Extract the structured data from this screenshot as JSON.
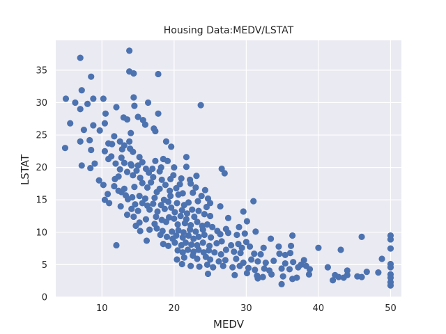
{
  "chart_data": {
    "type": "scatter",
    "title": "Housing Data:MEDV/LSTAT",
    "xlabel": "MEDV",
    "ylabel": "LSTAT",
    "xlim": [
      3.6,
      51.5
    ],
    "ylim": [
      0,
      39.6
    ],
    "xticks": [
      10,
      20,
      30,
      40,
      50
    ],
    "yticks": [
      0,
      5,
      10,
      15,
      20,
      25,
      30,
      35
    ],
    "grid": true,
    "colors": {
      "background": "#EAEAF2",
      "grid": "#FFFFFF",
      "marker": "#4C72B0"
    },
    "series": [
      {
        "points": [
          [
            7.0,
            36.9
          ],
          [
            13.8,
            38.0
          ],
          [
            13.8,
            34.8
          ],
          [
            14.4,
            34.5
          ],
          [
            17.8,
            34.4
          ],
          [
            8.5,
            34.0
          ],
          [
            23.7,
            29.6
          ],
          [
            7.2,
            31.9
          ],
          [
            5.0,
            30.6
          ],
          [
            10.2,
            30.6
          ],
          [
            12.0,
            29.3
          ],
          [
            14.4,
            30.8
          ],
          [
            16.4,
            30.0
          ],
          [
            6.3,
            30.0
          ],
          [
            8.0,
            29.8
          ],
          [
            7.0,
            29.0
          ],
          [
            8.8,
            30.6
          ],
          [
            10.5,
            28.3
          ],
          [
            14.5,
            29.5
          ],
          [
            17.8,
            28.3
          ],
          [
            15.0,
            27.8
          ],
          [
            13.5,
            27.4
          ],
          [
            13.0,
            27.7
          ],
          [
            16.0,
            26.6
          ],
          [
            15.7,
            27.3
          ],
          [
            17.2,
            26.0
          ],
          [
            10.4,
            26.8
          ],
          [
            5.6,
            26.8
          ],
          [
            8.8,
            26.5
          ],
          [
            7.5,
            25.8
          ],
          [
            9.7,
            25.7
          ],
          [
            11.7,
            24.8
          ],
          [
            13.8,
            24.0
          ],
          [
            17.4,
            25.6
          ],
          [
            14.0,
            25.3
          ],
          [
            12.5,
            24.0
          ],
          [
            8.3,
            24.2
          ],
          [
            7.0,
            24.0
          ],
          [
            4.9,
            23.0
          ],
          [
            10.9,
            23.7
          ],
          [
            11.4,
            23.6
          ],
          [
            13.1,
            23.4
          ],
          [
            12.8,
            22.8
          ],
          [
            13.9,
            22.9
          ],
          [
            14.3,
            22.4
          ],
          [
            18.9,
            24.0
          ],
          [
            19.6,
            23.2
          ],
          [
            10.4,
            22.5
          ],
          [
            8.5,
            22.7
          ],
          [
            11.3,
            21.7
          ],
          [
            10.9,
            21.3
          ],
          [
            12.7,
            21.5
          ],
          [
            13.1,
            20.7
          ],
          [
            14.1,
            20.3
          ],
          [
            15.2,
            21.6
          ],
          [
            15.6,
            20.8
          ],
          [
            16.1,
            19.8
          ],
          [
            17.4,
            21.0
          ],
          [
            18.5,
            21.3
          ],
          [
            19.1,
            21.0
          ],
          [
            21.7,
            21.6
          ],
          [
            21.7,
            20.1
          ],
          [
            20.0,
            20.0
          ],
          [
            18.2,
            20.0
          ],
          [
            17.0,
            19.8
          ],
          [
            15.0,
            20.3
          ],
          [
            14.0,
            20.5
          ],
          [
            12.5,
            19.7
          ],
          [
            11.9,
            20.6
          ],
          [
            9.0,
            20.6
          ],
          [
            8.4,
            19.9
          ],
          [
            7.2,
            20.3
          ],
          [
            26.6,
            19.8
          ],
          [
            27.0,
            19.1
          ],
          [
            13.5,
            19.3
          ],
          [
            14.8,
            19.5
          ],
          [
            16.5,
            19.2
          ],
          [
            18.0,
            19.4
          ],
          [
            19.9,
            18.8
          ],
          [
            23.1,
            18.7
          ],
          [
            22.2,
            18.1
          ],
          [
            21.0,
            18.3
          ],
          [
            19.5,
            18.2
          ],
          [
            18.3,
            18.1
          ],
          [
            17.1,
            18.5
          ],
          [
            15.3,
            18.4
          ],
          [
            14.3,
            18.8
          ],
          [
            12.3,
            18.6
          ],
          [
            11.8,
            18.2
          ],
          [
            9.6,
            18.0
          ],
          [
            15.6,
            17.6
          ],
          [
            16.8,
            17.7
          ],
          [
            18.8,
            17.3
          ],
          [
            20.8,
            17.4
          ],
          [
            22.3,
            17.5
          ],
          [
            23.0,
            16.9
          ],
          [
            24.3,
            16.5
          ],
          [
            20.3,
            16.8
          ],
          [
            19.4,
            16.4
          ],
          [
            18.0,
            16.7
          ],
          [
            17.6,
            16.2
          ],
          [
            16.3,
            16.9
          ],
          [
            14.5,
            17.0
          ],
          [
            13.1,
            16.7
          ],
          [
            12.7,
            16.2
          ],
          [
            11.7,
            17.1
          ],
          [
            10.2,
            17.3
          ],
          [
            10.8,
            15.9
          ],
          [
            10.4,
            15.0
          ],
          [
            12.3,
            16.4
          ],
          [
            13.3,
            15.7
          ],
          [
            14.2,
            15.4
          ],
          [
            15.2,
            15.6
          ],
          [
            16.0,
            15.2
          ],
          [
            17.3,
            15.3
          ],
          [
            18.6,
            15.0
          ],
          [
            19.5,
            15.6
          ],
          [
            20.6,
            15.8
          ],
          [
            21.2,
            16.0
          ],
          [
            22.6,
            16.1
          ],
          [
            23.8,
            15.6
          ],
          [
            24.7,
            15.2
          ],
          [
            26.4,
            14.0
          ],
          [
            31.0,
            14.8
          ],
          [
            25.0,
            14.5
          ],
          [
            23.3,
            14.8
          ],
          [
            22.0,
            14.6
          ],
          [
            21.4,
            14.2
          ],
          [
            20.4,
            14.5
          ],
          [
            19.2,
            14.7
          ],
          [
            18.2,
            14.2
          ],
          [
            17.1,
            14.4
          ],
          [
            16.3,
            14.1
          ],
          [
            15.6,
            14.5
          ],
          [
            14.6,
            14.3
          ],
          [
            13.6,
            15.1
          ],
          [
            11.0,
            14.5
          ],
          [
            12.6,
            14.0
          ],
          [
            14.1,
            13.6
          ],
          [
            15.0,
            13.3
          ],
          [
            16.6,
            13.5
          ],
          [
            17.7,
            13.2
          ],
          [
            18.7,
            13.6
          ],
          [
            19.6,
            13.8
          ],
          [
            20.1,
            13.1
          ],
          [
            21.1,
            13.4
          ],
          [
            21.8,
            12.9
          ],
          [
            22.5,
            13.5
          ],
          [
            23.4,
            13.3
          ],
          [
            24.2,
            12.8
          ],
          [
            24.5,
            13.9
          ],
          [
            25.0,
            12.5
          ],
          [
            27.5,
            12.2
          ],
          [
            29.6,
            13.2
          ],
          [
            22.8,
            12.4
          ],
          [
            21.7,
            12.0
          ],
          [
            20.9,
            12.5
          ],
          [
            20.0,
            12.1
          ],
          [
            19.3,
            12.3
          ],
          [
            18.3,
            11.9
          ],
          [
            17.5,
            12.4
          ],
          [
            16.1,
            12.0
          ],
          [
            14.4,
            12.4
          ],
          [
            13.5,
            12.7
          ],
          [
            15.2,
            11.5
          ],
          [
            17.3,
            11.3
          ],
          [
            18.9,
            11.6
          ],
          [
            20.5,
            11.2
          ],
          [
            21.5,
            11.4
          ],
          [
            22.3,
            11.1
          ],
          [
            23.2,
            11.6
          ],
          [
            23.9,
            11.0
          ],
          [
            24.6,
            11.2
          ],
          [
            25.3,
            10.8
          ],
          [
            26.0,
            10.2
          ],
          [
            27.2,
            10.5
          ],
          [
            29.0,
            10.8
          ],
          [
            30.1,
            11.7
          ],
          [
            24.0,
            10.4
          ],
          [
            23.0,
            10.1
          ],
          [
            22.2,
            10.4
          ],
          [
            21.3,
            10.0
          ],
          [
            20.6,
            10.3
          ],
          [
            19.7,
            10.1
          ],
          [
            18.4,
            10.2
          ],
          [
            17.6,
            10.6
          ],
          [
            16.6,
            10.4
          ],
          [
            15.3,
            10.2
          ],
          [
            14.7,
            11.0
          ],
          [
            16.2,
            8.7
          ],
          [
            18.1,
            9.6
          ],
          [
            19.0,
            9.3
          ],
          [
            19.8,
            9.0
          ],
          [
            20.3,
            9.5
          ],
          [
            21.2,
            9.2
          ],
          [
            22.0,
            9.5
          ],
          [
            22.7,
            9.0
          ],
          [
            23.4,
            9.3
          ],
          [
            24.2,
            9.6
          ],
          [
            25.1,
            9.2
          ],
          [
            26.4,
            9.7
          ],
          [
            27.5,
            9.9
          ],
          [
            28.7,
            9.6
          ],
          [
            29.8,
            9.8
          ],
          [
            31.3,
            10.1
          ],
          [
            33.4,
            9.0
          ],
          [
            36.4,
            9.5
          ],
          [
            46.0,
            9.3
          ],
          [
            50.0,
            9.5
          ],
          [
            50.0,
            8.9
          ],
          [
            12.0,
            8.0
          ],
          [
            18.5,
            8.2
          ],
          [
            19.2,
            7.9
          ],
          [
            20.1,
            8.4
          ],
          [
            21.0,
            8.0
          ],
          [
            21.6,
            8.4
          ],
          [
            22.4,
            8.1
          ],
          [
            23.2,
            8.0
          ],
          [
            24.0,
            8.4
          ],
          [
            24.9,
            7.9
          ],
          [
            25.9,
            8.3
          ],
          [
            26.6,
            8.6
          ],
          [
            27.9,
            8.0
          ],
          [
            28.9,
            8.2
          ],
          [
            30.0,
            8.5
          ],
          [
            29.4,
            7.6
          ],
          [
            30.5,
            7.8
          ],
          [
            32.4,
            7.6
          ],
          [
            34.5,
            7.8
          ],
          [
            36.2,
            7.9
          ],
          [
            40.0,
            7.6
          ],
          [
            43.1,
            7.3
          ],
          [
            50.0,
            7.5
          ],
          [
            20.5,
            7.2
          ],
          [
            21.2,
            6.9
          ],
          [
            21.9,
            7.3
          ],
          [
            22.7,
            7.0
          ],
          [
            23.4,
            7.3
          ],
          [
            24.1,
            6.9
          ],
          [
            24.8,
            7.2
          ],
          [
            25.6,
            6.9
          ],
          [
            26.5,
            6.6
          ],
          [
            27.2,
            7.3
          ],
          [
            28.3,
            7.0
          ],
          [
            29.2,
            6.8
          ],
          [
            31.1,
            6.7
          ],
          [
            32.0,
            6.6
          ],
          [
            34.6,
            6.7
          ],
          [
            35.4,
            6.5
          ],
          [
            36.1,
            6.8
          ],
          [
            20.4,
            5.8
          ],
          [
            21.4,
            6.1
          ],
          [
            22.6,
            6.4
          ],
          [
            23.2,
            5.9
          ],
          [
            24.4,
            6.2
          ],
          [
            25.0,
            5.8
          ],
          [
            26.2,
            5.5
          ],
          [
            27.1,
            5.7
          ],
          [
            28.6,
            5.9
          ],
          [
            29.6,
            5.3
          ],
          [
            30.7,
            5.8
          ],
          [
            31.6,
            5.5
          ],
          [
            32.7,
            5.3
          ],
          [
            33.8,
            5.6
          ],
          [
            35.4,
            5.2
          ],
          [
            36.5,
            5.4
          ],
          [
            37.6,
            5.0
          ],
          [
            38.3,
            4.8
          ],
          [
            38.0,
            5.7
          ],
          [
            48.8,
            5.9
          ],
          [
            50.0,
            5.1
          ],
          [
            21.1,
            5.1
          ],
          [
            22.3,
            4.8
          ],
          [
            23.5,
            4.7
          ],
          [
            24.6,
            5.0
          ],
          [
            25.4,
            4.6
          ],
          [
            26.8,
            4.8
          ],
          [
            28.1,
            4.6
          ],
          [
            29.1,
            4.8
          ],
          [
            30.3,
            4.5
          ],
          [
            31.2,
            4.2
          ],
          [
            32.5,
            4.4
          ],
          [
            33.2,
            4.1
          ],
          [
            34.9,
            4.4
          ],
          [
            36.0,
            4.3
          ],
          [
            37.2,
            4.6
          ],
          [
            38.8,
            4.3
          ],
          [
            41.3,
            4.6
          ],
          [
            44.0,
            4.1
          ],
          [
            46.7,
            3.9
          ],
          [
            50.0,
            4.6
          ],
          [
            24.7,
            3.6
          ],
          [
            28.4,
            3.4
          ],
          [
            30.1,
            3.7
          ],
          [
            31.5,
            3.3
          ],
          [
            32.3,
            3.1
          ],
          [
            33.5,
            3.5
          ],
          [
            35.1,
            3.2
          ],
          [
            37.0,
            3.0
          ],
          [
            38.7,
            3.5
          ],
          [
            42.3,
            3.4
          ],
          [
            43.5,
            3.0
          ],
          [
            44.0,
            3.4
          ],
          [
            45.4,
            3.2
          ],
          [
            48.3,
            3.8
          ],
          [
            50.0,
            3.5
          ],
          [
            31.6,
            2.9
          ],
          [
            36.4,
            2.8
          ],
          [
            42.0,
            2.6
          ],
          [
            42.8,
            3.1
          ],
          [
            46.0,
            3.1
          ],
          [
            50.0,
            3.0
          ],
          [
            34.9,
            2.0
          ],
          [
            50.0,
            1.8
          ],
          [
            50.0,
            2.3
          ]
        ]
      }
    ]
  }
}
